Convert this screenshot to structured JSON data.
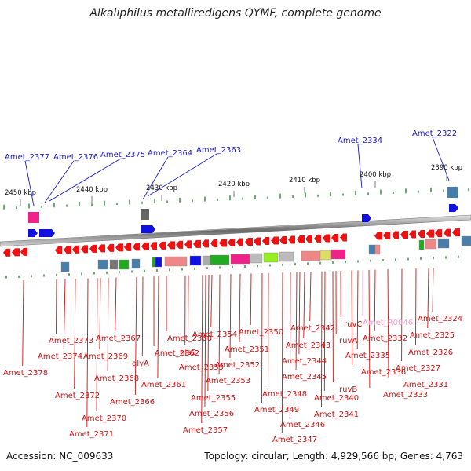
{
  "title": "Alkaliphilus metalliredigens QYMF, complete genome",
  "accession": "Accession: NC_009633",
  "topology": "Topology: circular; Length: 4,929,566 bp; Genes: 4,763",
  "colors": {
    "forward": "#1010e0",
    "reverse": "#ee1111",
    "rna": "#ff99cc",
    "blue_label": "#1a1acc",
    "red_label": "#cc1111",
    "scale_tick": "#2a8a2a"
  },
  "scale_labels": [
    "2450 kbp",
    "2440 kbp",
    "2430 kbp",
    "2420 kbp",
    "2410 kbp",
    "2400 kbp",
    "2390 kbp"
  ],
  "forward_genes": [
    "Amet_2377",
    "Amet_2376",
    "Amet_2375",
    "Amet_2364",
    "Amet_2363",
    "Amet_2334",
    "Amet_2322"
  ],
  "reverse_genes": [
    "Amet_2378",
    "Amet_2373",
    "Amet_2374",
    "Amet_2372",
    "Amet_2371",
    "Amet_2370",
    "Amet_2369",
    "Amet_2368",
    "Amet_2367",
    "Amet_2366",
    "glyA",
    "Amet_2362",
    "Amet_2361",
    "Amet_2360",
    "hisS",
    "Amet_2359",
    "Amet_2357",
    "Amet_2356",
    "Amet_2355",
    "Amet_2354",
    "Amet_2353",
    "Amet_2352",
    "Amet_2351",
    "Amet_2350",
    "Amet_2349",
    "Amet_2348",
    "Amet_2347",
    "Amet_2346",
    "Amet_2345",
    "Amet_2344",
    "Amet_2343",
    "Amet_2342",
    "Amet_2341",
    "Amet_2340",
    "ruvB",
    "ruvA",
    "ruvC",
    "Amet_R0046",
    "Amet_2336",
    "Amet_2335",
    "Amet_2333",
    "Amet_2332",
    "Amet_2331",
    "Amet_2327",
    "Amet_2326",
    "Amet_2325",
    "Amet_2324"
  ]
}
